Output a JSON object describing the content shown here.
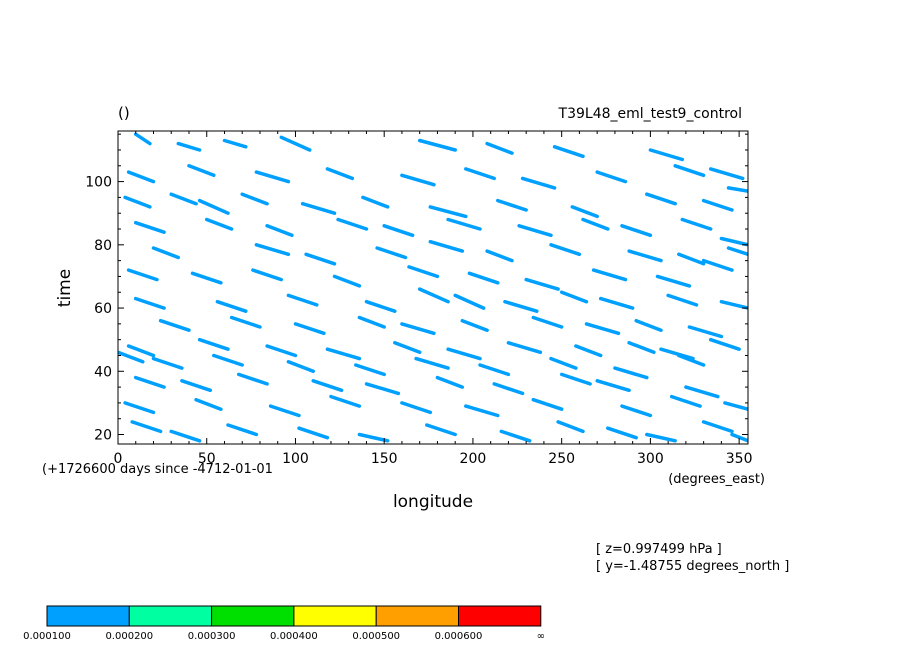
{
  "chart_data": {
    "type": "heatmap",
    "title_left": "()",
    "title_right": "T39L48_eml_test9_control",
    "xlabel": "longitude",
    "xunits": "(degrees_east)",
    "ylabel": "time",
    "time_offset_note": "(+1726600 days since -4712-01-01",
    "xlim": [
      0,
      355
    ],
    "ylim": [
      17,
      116
    ],
    "xticks": [
      0,
      50,
      100,
      150,
      200,
      250,
      300,
      350
    ],
    "yticks": [
      20,
      40,
      60,
      80,
      100
    ],
    "info_z": "[ z=0.997499 hPa ]",
    "info_y": "[ y=-1.48755 degrees_north ]",
    "colorbar": {
      "colors": [
        "#00a0ff",
        "#00ffa0",
        "#00e000",
        "#ffff00",
        "#ffa000",
        "#ff0000"
      ],
      "labels": [
        "0.000100",
        "0.000200",
        "0.000300",
        "0.000400",
        "0.000500",
        "0.000600",
        "∞"
      ]
    },
    "streaks": [
      [
        10,
        115,
        18,
        112
      ],
      [
        34,
        112,
        46,
        110
      ],
      [
        60,
        113,
        72,
        111
      ],
      [
        92,
        114,
        108,
        110
      ],
      [
        170,
        113,
        190,
        110
      ],
      [
        208,
        112,
        222,
        109
      ],
      [
        246,
        111,
        262,
        108
      ],
      [
        300,
        110,
        318,
        107
      ],
      [
        334,
        104,
        352,
        101
      ],
      [
        6,
        103,
        20,
        100
      ],
      [
        40,
        105,
        54,
        102
      ],
      [
        78,
        103,
        96,
        100
      ],
      [
        118,
        104,
        132,
        101
      ],
      [
        160,
        102,
        178,
        99
      ],
      [
        196,
        104,
        212,
        101
      ],
      [
        228,
        101,
        246,
        98
      ],
      [
        270,
        103,
        286,
        100
      ],
      [
        314,
        105,
        330,
        102
      ],
      [
        344,
        98,
        355,
        97
      ],
      [
        4,
        95,
        18,
        92
      ],
      [
        30,
        96,
        44,
        93
      ],
      [
        46,
        94,
        62,
        90
      ],
      [
        70,
        96,
        84,
        93
      ],
      [
        104,
        93,
        122,
        90
      ],
      [
        138,
        95,
        152,
        92
      ],
      [
        176,
        92,
        196,
        89
      ],
      [
        214,
        94,
        230,
        91
      ],
      [
        256,
        92,
        270,
        89
      ],
      [
        298,
        96,
        314,
        93
      ],
      [
        330,
        94,
        346,
        91
      ],
      [
        10,
        87,
        26,
        84
      ],
      [
        50,
        88,
        64,
        85
      ],
      [
        84,
        86,
        98,
        83
      ],
      [
        124,
        88,
        140,
        85
      ],
      [
        150,
        86,
        166,
        83
      ],
      [
        186,
        88,
        204,
        85
      ],
      [
        226,
        86,
        244,
        83
      ],
      [
        262,
        88,
        276,
        85
      ],
      [
        284,
        86,
        300,
        83
      ],
      [
        318,
        88,
        334,
        85
      ],
      [
        340,
        82,
        355,
        80
      ],
      [
        20,
        79,
        34,
        76
      ],
      [
        78,
        80,
        96,
        77
      ],
      [
        106,
        77,
        122,
        74
      ],
      [
        146,
        79,
        162,
        76
      ],
      [
        176,
        81,
        194,
        78
      ],
      [
        208,
        78,
        222,
        75
      ],
      [
        244,
        80,
        260,
        77
      ],
      [
        288,
        78,
        306,
        75
      ],
      [
        316,
        77,
        330,
        74
      ],
      [
        344,
        79,
        355,
        77
      ],
      [
        6,
        72,
        22,
        69
      ],
      [
        42,
        71,
        58,
        68
      ],
      [
        76,
        72,
        92,
        69
      ],
      [
        122,
        70,
        136,
        67
      ],
      [
        164,
        73,
        180,
        70
      ],
      [
        198,
        71,
        214,
        68
      ],
      [
        230,
        69,
        248,
        66
      ],
      [
        268,
        72,
        286,
        69
      ],
      [
        304,
        70,
        322,
        67
      ],
      [
        330,
        75,
        346,
        72
      ],
      [
        10,
        63,
        26,
        60
      ],
      [
        56,
        62,
        72,
        59
      ],
      [
        96,
        64,
        112,
        61
      ],
      [
        140,
        62,
        156,
        59
      ],
      [
        170,
        66,
        186,
        62
      ],
      [
        190,
        64,
        206,
        60
      ],
      [
        218,
        62,
        236,
        59
      ],
      [
        250,
        65,
        264,
        62
      ],
      [
        272,
        63,
        290,
        60
      ],
      [
        310,
        64,
        326,
        61
      ],
      [
        340,
        62,
        355,
        60
      ],
      [
        24,
        56,
        40,
        53
      ],
      [
        64,
        57,
        80,
        54
      ],
      [
        100,
        55,
        116,
        52
      ],
      [
        136,
        57,
        150,
        54
      ],
      [
        160,
        55,
        178,
        52
      ],
      [
        194,
        56,
        208,
        53
      ],
      [
        234,
        57,
        250,
        54
      ],
      [
        264,
        55,
        282,
        52
      ],
      [
        292,
        56,
        306,
        53
      ],
      [
        322,
        54,
        340,
        51
      ],
      [
        6,
        48,
        20,
        45
      ],
      [
        46,
        50,
        62,
        47
      ],
      [
        84,
        48,
        100,
        45
      ],
      [
        118,
        47,
        136,
        44
      ],
      [
        156,
        49,
        170,
        46
      ],
      [
        186,
        47,
        204,
        44
      ],
      [
        220,
        49,
        238,
        46
      ],
      [
        258,
        48,
        272,
        45
      ],
      [
        288,
        49,
        302,
        46
      ],
      [
        306,
        47,
        324,
        44
      ],
      [
        334,
        50,
        350,
        47
      ],
      [
        0,
        46,
        14,
        43
      ],
      [
        20,
        44,
        36,
        41
      ],
      [
        54,
        45,
        70,
        42
      ],
      [
        96,
        43,
        110,
        40
      ],
      [
        134,
        42,
        150,
        39
      ],
      [
        168,
        44,
        186,
        41
      ],
      [
        204,
        42,
        220,
        39
      ],
      [
        244,
        44,
        258,
        41
      ],
      [
        280,
        41,
        298,
        38
      ],
      [
        316,
        45,
        330,
        42
      ],
      [
        10,
        38,
        26,
        35
      ],
      [
        36,
        37,
        52,
        34
      ],
      [
        68,
        39,
        84,
        36
      ],
      [
        110,
        37,
        126,
        34
      ],
      [
        140,
        36,
        158,
        33
      ],
      [
        180,
        38,
        194,
        35
      ],
      [
        212,
        36,
        228,
        33
      ],
      [
        250,
        39,
        266,
        36
      ],
      [
        270,
        37,
        288,
        34
      ],
      [
        320,
        35,
        338,
        32
      ],
      [
        4,
        30,
        20,
        27
      ],
      [
        44,
        31,
        58,
        28
      ],
      [
        86,
        29,
        102,
        26
      ],
      [
        120,
        32,
        136,
        29
      ],
      [
        160,
        30,
        176,
        27
      ],
      [
        196,
        29,
        214,
        26
      ],
      [
        234,
        31,
        250,
        28
      ],
      [
        284,
        29,
        300,
        26
      ],
      [
        312,
        32,
        328,
        29
      ],
      [
        342,
        30,
        355,
        28
      ],
      [
        8,
        24,
        24,
        21
      ],
      [
        30,
        21,
        46,
        18
      ],
      [
        62,
        23,
        78,
        20
      ],
      [
        102,
        22,
        118,
        19
      ],
      [
        136,
        20,
        152,
        18
      ],
      [
        174,
        23,
        190,
        20
      ],
      [
        216,
        21,
        232,
        18
      ],
      [
        248,
        24,
        262,
        21
      ],
      [
        276,
        22,
        292,
        19
      ],
      [
        298,
        20,
        314,
        18
      ],
      [
        330,
        24,
        346,
        21
      ],
      [
        346,
        20,
        355,
        18
      ]
    ]
  }
}
